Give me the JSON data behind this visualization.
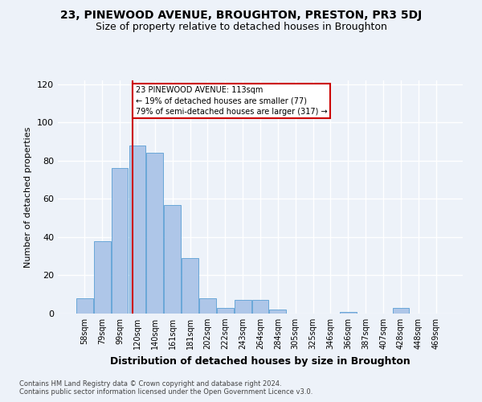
{
  "title": "23, PINEWOOD AVENUE, BROUGHTON, PRESTON, PR3 5DJ",
  "subtitle": "Size of property relative to detached houses in Broughton",
  "xlabel": "Distribution of detached houses by size in Broughton",
  "ylabel": "Number of detached properties",
  "footer_line1": "Contains HM Land Registry data © Crown copyright and database right 2024.",
  "footer_line2": "Contains public sector information licensed under the Open Government Licence v3.0.",
  "bin_labels": [
    "58sqm",
    "79sqm",
    "99sqm",
    "120sqm",
    "140sqm",
    "161sqm",
    "181sqm",
    "202sqm",
    "222sqm",
    "243sqm",
    "264sqm",
    "284sqm",
    "305sqm",
    "325sqm",
    "346sqm",
    "366sqm",
    "387sqm",
    "407sqm",
    "428sqm",
    "448sqm",
    "469sqm"
  ],
  "bar_values": [
    8,
    38,
    76,
    88,
    84,
    57,
    29,
    8,
    3,
    7,
    7,
    2,
    0,
    0,
    0,
    1,
    0,
    0,
    3,
    0,
    0
  ],
  "bar_color": "#aec6e8",
  "bar_edge_color": "#5a9fd4",
  "red_line_color": "#cc0000",
  "annotation_text": "23 PINEWOOD AVENUE: 113sqm\n← 19% of detached houses are smaller (77)\n79% of semi-detached houses are larger (317) →",
  "annotation_box_color": "#ffffff",
  "annotation_box_edge_color": "#cc0000",
  "ylim": [
    0,
    122
  ],
  "yticks": [
    0,
    20,
    40,
    60,
    80,
    100,
    120
  ],
  "background_color": "#edf2f9",
  "grid_color": "#ffffff",
  "title_fontsize": 10,
  "subtitle_fontsize": 9,
  "xlabel_fontsize": 9,
  "ylabel_fontsize": 8
}
